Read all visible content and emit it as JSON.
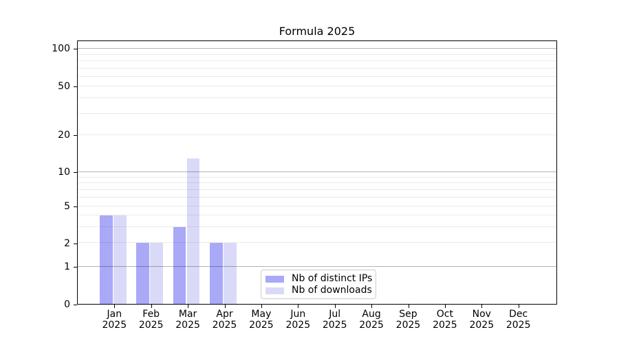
{
  "chart_data": {
    "type": "bar",
    "title": "Formula 2025",
    "categories": [
      "Jan 2025",
      "Feb 2025",
      "Mar 2025",
      "Apr 2025",
      "May 2025",
      "Jun 2025",
      "Jul 2025",
      "Aug 2025",
      "Sep 2025",
      "Oct 2025",
      "Nov 2025",
      "Dec 2025"
    ],
    "series": [
      {
        "name": "Nb of distinct IPs",
        "color": "#a9a9f7",
        "values": [
          4,
          2,
          3,
          2,
          0,
          0,
          0,
          0,
          0,
          0,
          0,
          0
        ]
      },
      {
        "name": "Nb of downloads",
        "color": "#dadaf8",
        "values": [
          4,
          2,
          13,
          2,
          0,
          0,
          0,
          0,
          0,
          0,
          0,
          0
        ]
      }
    ],
    "xlabel": "",
    "ylabel": "",
    "y_axis": {
      "scale": "asinh-like (linear below 1, log-like above)",
      "tick_values": [
        0,
        1,
        2,
        5,
        10,
        20,
        50,
        100
      ],
      "tick_labels": [
        "0",
        "1",
        "2",
        "5",
        "10",
        "20",
        "50",
        "100"
      ],
      "ylim": [
        0,
        116
      ],
      "light_gridlines": [
        2,
        3,
        4,
        5,
        6,
        7,
        8,
        9,
        20,
        30,
        40,
        50,
        60,
        70,
        80,
        90
      ],
      "dark_gridlines": [
        1,
        10,
        100
      ],
      "grid_minor_color": "#ebebeb",
      "grid_major_color": "#b3b3b3",
      "tick_position_fractions": [
        [
          0,
          0
        ],
        [
          1,
          0.1416
        ],
        [
          2,
          0.2312
        ],
        [
          5,
          0.3714
        ],
        [
          10,
          0.5013
        ],
        [
          20,
          0.6416
        ],
        [
          50,
          0.8278
        ],
        [
          100,
          0.9701
        ]
      ]
    },
    "legend": {
      "position": "lower center inside plot",
      "entries": [
        "Nb of distinct IPs",
        "Nb of downloads"
      ]
    },
    "grid": true,
    "background": "#ffffff",
    "axis_color": "#000000"
  }
}
